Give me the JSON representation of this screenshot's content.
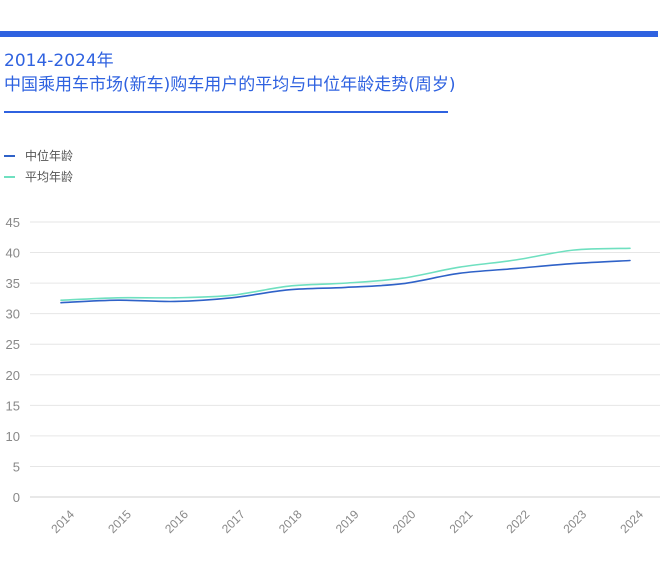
{
  "title": {
    "line1": "2014-2024年",
    "line2": "中国乘用车市场(新车)购车用户的平均与中位年龄走势(周岁)"
  },
  "colors": {
    "accent": "#2f62e0",
    "median": "#2f62c8",
    "average": "#6fe0c0",
    "grid": "#e6e6e6",
    "tick": "#888888"
  },
  "chart_data": {
    "type": "line",
    "title": "2014-2024年 中国乘用车市场(新车)购车用户的平均与中位年龄走势(周岁)",
    "x": [
      "2014",
      "2015",
      "2016",
      "2017",
      "2018",
      "2019",
      "2020",
      "2021",
      "2022",
      "2023",
      "2024"
    ],
    "series": [
      {
        "name": "中位年龄",
        "values": [
          31.8,
          32.2,
          32.0,
          32.6,
          33.9,
          34.3,
          34.9,
          36.6,
          37.4,
          38.2,
          38.7
        ]
      },
      {
        "name": "平均年龄",
        "values": [
          32.2,
          32.6,
          32.6,
          33.0,
          34.5,
          35.0,
          35.8,
          37.6,
          38.8,
          40.4,
          40.7
        ]
      }
    ],
    "yticks": [
      "45",
      "40",
      "35",
      "30",
      "25",
      "20",
      "15",
      "10",
      "5",
      "0"
    ],
    "ylim": [
      0,
      45
    ],
    "grid": true,
    "legend": "top-left"
  }
}
